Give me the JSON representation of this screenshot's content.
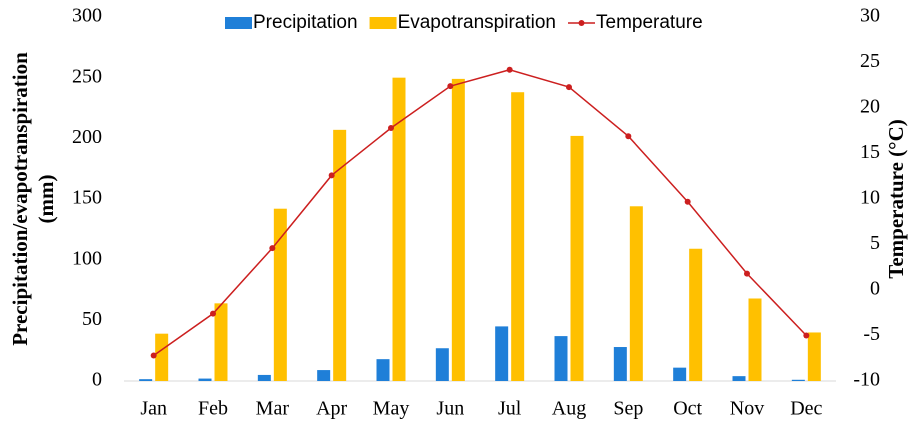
{
  "chart_data": {
    "type": "bar-line",
    "categories": [
      "Jan",
      "Feb",
      "Mar",
      "Apr",
      "May",
      "Jun",
      "Jul",
      "Aug",
      "Sep",
      "Oct",
      "Nov",
      "Dec"
    ],
    "series": [
      {
        "name": "Precipitation",
        "color": "#1f7fd8",
        "type": "bar",
        "values": [
          1.5,
          2,
          5,
          9,
          18,
          27,
          45,
          37,
          28,
          11,
          4,
          1
        ]
      },
      {
        "name": "Evapotranspiration",
        "color": "#ffc000",
        "type": "bar",
        "values": [
          39,
          64,
          142,
          207,
          250,
          249,
          238,
          202,
          144,
          109,
          68,
          40
        ]
      },
      {
        "name": "Temperature",
        "color": "#cc1f1f",
        "type": "line",
        "axis": "y2",
        "values": [
          -7.2,
          -2.6,
          4.6,
          12.6,
          17.8,
          22.4,
          24.2,
          22.3,
          16.9,
          9.7,
          1.8,
          -5.0
        ]
      }
    ],
    "ylabel": [
      "Precipitation/evapotranspiration",
      "(mm)"
    ],
    "y2label": "Temperature (°C)",
    "ylim": [
      0,
      300
    ],
    "yticks": [
      0,
      50,
      100,
      150,
      200,
      250,
      300
    ],
    "y2lim": [
      -10,
      30
    ],
    "y2ticks": [
      -10,
      -5,
      0,
      5,
      10,
      15,
      20,
      25,
      30
    ],
    "grid": false,
    "legend": "top"
  }
}
